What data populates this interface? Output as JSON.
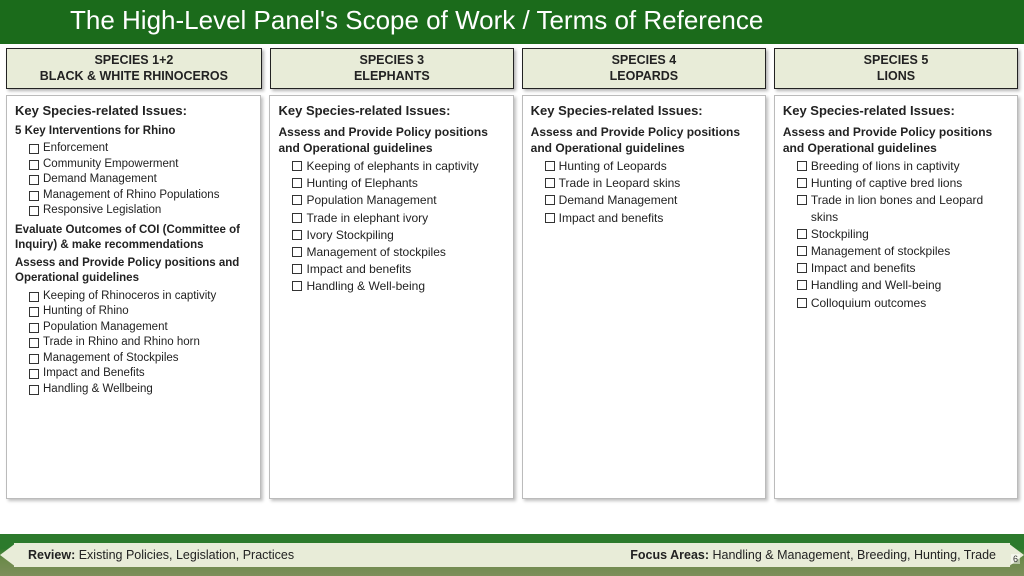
{
  "title": "The High-Level Panel's Scope of Work / Terms of Reference",
  "columns": [
    {
      "header_l1": "SPECIES 1+2",
      "header_l2": "BLACK & WHITE RHINOCEROS",
      "issues_head": "Key Species-related Issues:",
      "sections": [
        {
          "subhead": "5 Key Interventions for Rhino",
          "items": [
            "Enforcement",
            "Community Empowerment",
            "Demand Management",
            "Management of Rhino Populations",
            "Responsive Legislation"
          ]
        },
        {
          "subhead": "Evaluate Outcomes of COI (Committee of Inquiry) & make recommendations",
          "items": []
        },
        {
          "subhead": "Assess and Provide Policy positions and Operational guidelines",
          "items": [
            "Keeping of Rhinoceros in captivity",
            "Hunting of Rhino",
            "Population Management",
            "Trade in Rhino and Rhino horn",
            "Management of Stockpiles",
            "Impact and Benefits",
            "Handling & Wellbeing"
          ]
        }
      ]
    },
    {
      "header_l1": "SPECIES 3",
      "header_l2": "ELEPHANTS",
      "issues_head": "Key Species-related Issues:",
      "sections": [
        {
          "subhead": "Assess and Provide Policy positions and Operational guidelines",
          "items": [
            "Keeping of elephants in captivity",
            "Hunting of Elephants",
            "Population Management",
            "Trade in elephant ivory",
            "Ivory Stockpiling",
            "Management of stockpiles",
            "Impact and benefits",
            "Handling & Well-being"
          ]
        }
      ]
    },
    {
      "header_l1": "SPECIES 4",
      "header_l2": "LEOPARDS",
      "issues_head": "Key Species-related Issues:",
      "sections": [
        {
          "subhead": "Assess and Provide Policy positions and Operational guidelines",
          "items": [
            "Hunting of Leopards",
            "Trade in Leopard skins",
            "Demand Management",
            "Impact and benefits"
          ]
        }
      ]
    },
    {
      "header_l1": "SPECIES 5",
      "header_l2": "LIONS",
      "issues_head": "Key Species-related Issues:",
      "sections": [
        {
          "subhead": "Assess and Provide Policy positions and Operational guidelines",
          "items": [
            "Breeding of lions in captivity",
            "Hunting of captive bred lions",
            "Trade in lion bones and Leopard skins",
            "Stockpiling",
            "Management of stockpiles",
            "Impact and benefits",
            "Handling and Well-being",
            "Colloquium outcomes"
          ]
        }
      ]
    }
  ],
  "footer": {
    "review_label": "Review:",
    "review_text": " Existing Policies, Legislation, Practices",
    "focus_label": "Focus Areas:",
    "focus_text": " Handling & Management, Breeding, Hunting, Trade"
  },
  "page_number": "6",
  "colors": {
    "title_bg": "#1b6b1b",
    "header_bg": "#e8ecd8",
    "footer_bar": "#e8ecd8"
  }
}
